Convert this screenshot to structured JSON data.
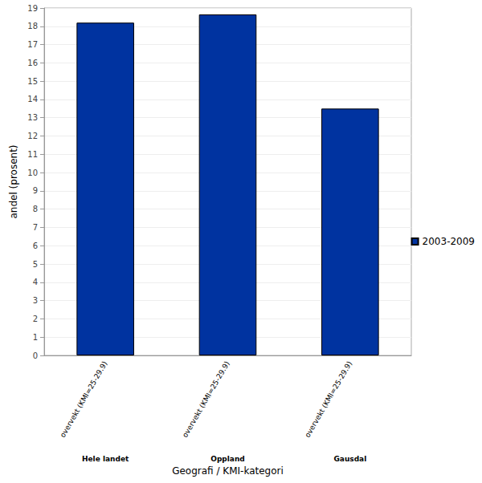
{
  "chart_data": {
    "type": "bar",
    "x_label": "Geografi / KMI-kategori",
    "y_label": "andel (prosent)",
    "categories": [
      "overvekt (KMI=25-29.9)",
      "overvekt (KMI=25-29.9)",
      "overvekt (KMI=25-29.9)"
    ],
    "category_groups": [
      "Hele landet",
      "Oppland",
      "Gausdal"
    ],
    "series": [
      {
        "name": "2003-2009",
        "color": "#0033a0",
        "values": [
          18.2,
          18.65,
          13.5
        ]
      }
    ],
    "ylim": [
      0,
      19
    ],
    "yticks": [
      0,
      1,
      2,
      3,
      4,
      5,
      6,
      7,
      8,
      9,
      10,
      11,
      12,
      13,
      14,
      15,
      16,
      17,
      18,
      19
    ],
    "grid": true,
    "legend": "right"
  }
}
